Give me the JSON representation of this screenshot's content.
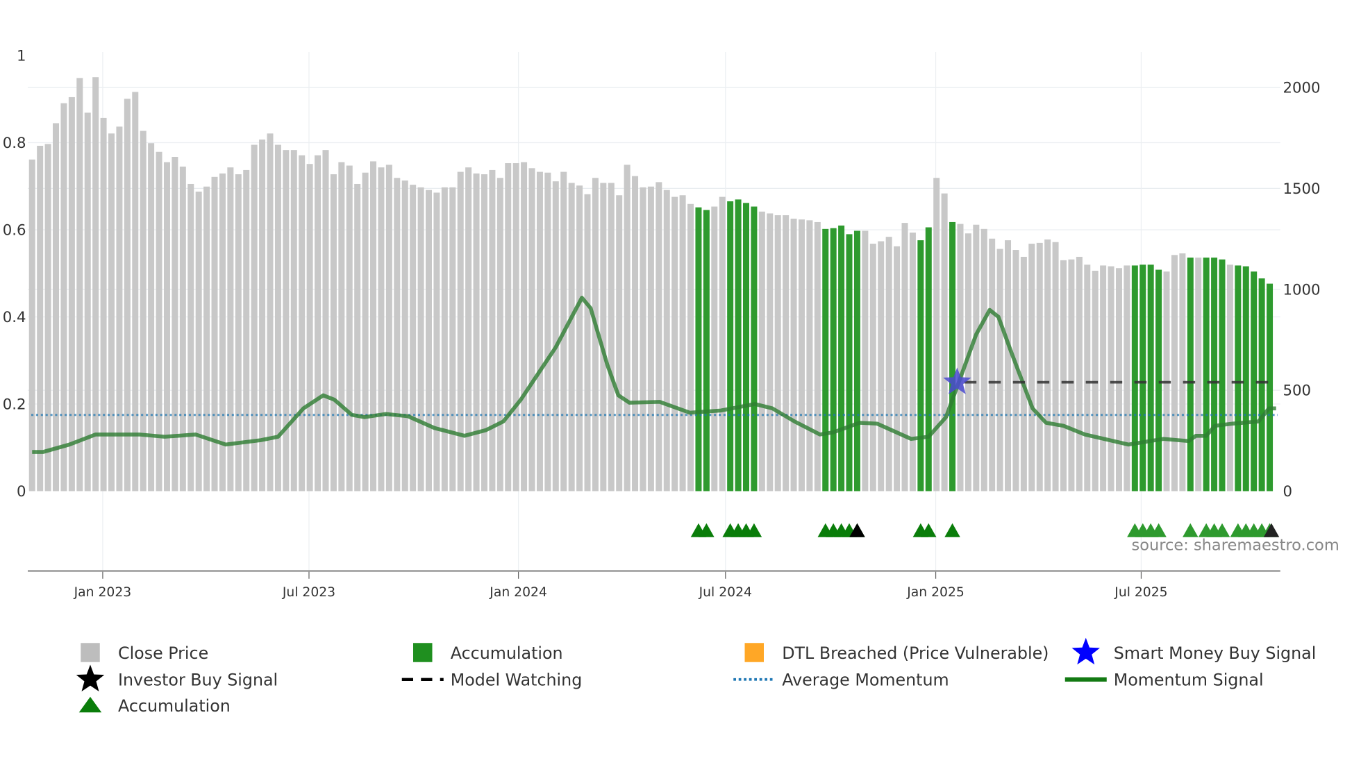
{
  "chart_data": {
    "type": "bar",
    "title": "",
    "source": "source: sharemaestro.com",
    "left_axis": {
      "ticks": [
        "0",
        "0.2",
        "0.4",
        "0.6",
        "0.8",
        "1"
      ],
      "values": [
        0,
        0.2,
        0.4,
        0.6,
        0.8,
        1
      ],
      "range": [
        0,
        1
      ]
    },
    "right_axis": {
      "ticks": [
        "0",
        "500",
        "1000",
        "1500",
        "2000"
      ],
      "values": [
        0,
        500,
        1000,
        1500,
        2000
      ],
      "range": [
        0,
        2160
      ]
    },
    "x_ticks": [
      {
        "label": "Jan 2023",
        "index": 8.9
      },
      {
        "label": "Jul 2023",
        "index": 34.9
      },
      {
        "label": "Jan 2024",
        "index": 61.3
      },
      {
        "label": "Jul 2024",
        "index": 87.4
      },
      {
        "label": "Jan 2025",
        "index": 113.9
      },
      {
        "label": "Jul 2025",
        "index": 139.8
      }
    ],
    "close_price": [
      1643,
      1711,
      1720,
      1823,
      1922,
      1952,
      2047,
      1875,
      2051,
      1849,
      1772,
      1806,
      1944,
      1978,
      1785,
      1724,
      1681,
      1630,
      1656,
      1608,
      1522,
      1484,
      1509,
      1557,
      1574,
      1604,
      1570,
      1591,
      1716,
      1742,
      1772,
      1716,
      1690,
      1690,
      1664,
      1621,
      1664,
      1690,
      1570,
      1630,
      1613,
      1522,
      1578,
      1634,
      1604,
      1617,
      1552,
      1539,
      1518,
      1505,
      1492,
      1479,
      1505,
      1505,
      1582,
      1604,
      1574,
      1570,
      1591,
      1552,
      1625,
      1625,
      1630,
      1600,
      1582,
      1578,
      1535,
      1582,
      1527,
      1514,
      1471,
      1552,
      1527,
      1527,
      1466,
      1617,
      1561,
      1505,
      1509,
      1531,
      1492,
      1458,
      1466,
      1423,
      1406,
      1393,
      1410,
      1458,
      1436,
      1445,
      1428,
      1410,
      1385,
      1376,
      1367,
      1367,
      1350,
      1346,
      1342,
      1333,
      1299,
      1303,
      1316,
      1273,
      1290,
      1290,
      1226,
      1238,
      1260,
      1213,
      1329,
      1281,
      1243,
      1307,
      1552,
      1475,
      1333,
      1324,
      1277,
      1320,
      1299,
      1251,
      1200,
      1243,
      1195,
      1161,
      1226,
      1230,
      1247,
      1234,
      1144,
      1148,
      1161,
      1122,
      1092,
      1118,
      1114,
      1105,
      1118,
      1118,
      1122,
      1122,
      1097,
      1088,
      1170,
      1178,
      1157,
      1157,
      1157,
      1157,
      1148,
      1122,
      1118,
      1114,
      1088,
      1054,
      1028
    ],
    "accumulation_indices": [
      84,
      85,
      88,
      89,
      90,
      91,
      100,
      101,
      102,
      103,
      104,
      112,
      113,
      116,
      139,
      140,
      141,
      142,
      146,
      148,
      149,
      150,
      152,
      153,
      154,
      155,
      156
    ],
    "momentum": [
      [
        0,
        0.09
      ],
      [
        1.4,
        0.09
      ],
      [
        4.7,
        0.107
      ],
      [
        8,
        0.13
      ],
      [
        13.5,
        0.13
      ],
      [
        16.7,
        0.125
      ],
      [
        20.6,
        0.13
      ],
      [
        24.4,
        0.107
      ],
      [
        28.8,
        0.117
      ],
      [
        31,
        0.125
      ],
      [
        34.2,
        0.19
      ],
      [
        36.7,
        0.22
      ],
      [
        38.1,
        0.21
      ],
      [
        40.3,
        0.175
      ],
      [
        41.9,
        0.17
      ],
      [
        44.6,
        0.177
      ],
      [
        47.4,
        0.172
      ],
      [
        50.7,
        0.145
      ],
      [
        54.5,
        0.127
      ],
      [
        57.2,
        0.14
      ],
      [
        59.4,
        0.16
      ],
      [
        61.6,
        0.21
      ],
      [
        66,
        0.33
      ],
      [
        69.3,
        0.444
      ],
      [
        70.4,
        0.42
      ],
      [
        72.5,
        0.29
      ],
      [
        73.9,
        0.22
      ],
      [
        75.3,
        0.203
      ],
      [
        79.1,
        0.205
      ],
      [
        82.9,
        0.18
      ],
      [
        86.8,
        0.185
      ],
      [
        91.1,
        0.2
      ],
      [
        93.3,
        0.19
      ],
      [
        96.1,
        0.16
      ],
      [
        99.3,
        0.13
      ],
      [
        101,
        0.135
      ],
      [
        104.3,
        0.157
      ],
      [
        106.5,
        0.155
      ],
      [
        110.8,
        0.12
      ],
      [
        113,
        0.125
      ],
      [
        115.2,
        0.17
      ],
      [
        116.8,
        0.25
      ],
      [
        119,
        0.36
      ],
      [
        120.7,
        0.416
      ],
      [
        121.8,
        0.4
      ],
      [
        123.4,
        0.32
      ],
      [
        126.1,
        0.19
      ],
      [
        127.8,
        0.157
      ],
      [
        130,
        0.15
      ],
      [
        132.7,
        0.13
      ],
      [
        138.2,
        0.107
      ],
      [
        142.6,
        0.12
      ],
      [
        145.8,
        0.115
      ],
      [
        146.7,
        0.127
      ],
      [
        148,
        0.127
      ],
      [
        149.1,
        0.15
      ],
      [
        151.3,
        0.155
      ],
      [
        154.6,
        0.16
      ],
      [
        155.9,
        0.19
      ],
      [
        156.8,
        0.19
      ]
    ],
    "average_momentum": 0.175,
    "smart_money_buy_signal": {
      "index": 116.6,
      "value": 0.25
    },
    "model_watching": {
      "start_index": 117.5,
      "end_index": 156.5,
      "value": 0.25
    },
    "investor_buy_signal_indices": [
      104,
      156
    ],
    "colors": {
      "close": "#c8c8c8",
      "accumulation": "#2ca02c",
      "dtl": "#ffa726",
      "smart": "#0000ff",
      "momentum": "#2e7d32",
      "avg": "#1f77b4"
    },
    "legend": [
      {
        "label": "Close Price",
        "symbol": "gray-square"
      },
      {
        "label": "Accumulation",
        "symbol": "green-square"
      },
      {
        "label": "DTL Breached (Price Vulnerable)",
        "symbol": "orange-square"
      },
      {
        "label": "Smart Money Buy Signal",
        "symbol": "blue-star"
      },
      {
        "label": "Investor Buy Signal",
        "symbol": "black-star"
      },
      {
        "label": "Model Watching",
        "symbol": "black-dash"
      },
      {
        "label": "Average Momentum",
        "symbol": "blue-dot"
      },
      {
        "label": "Momentum Signal",
        "symbol": "green-line"
      },
      {
        "label": "Accumulation",
        "symbol": "green-triangle"
      }
    ]
  }
}
